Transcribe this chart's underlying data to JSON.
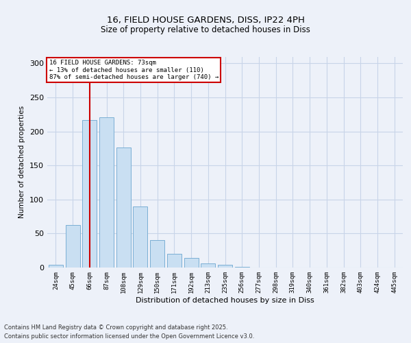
{
  "title_line1": "16, FIELD HOUSE GARDENS, DISS, IP22 4PH",
  "title_line2": "Size of property relative to detached houses in Diss",
  "xlabel": "Distribution of detached houses by size in Diss",
  "ylabel": "Number of detached properties",
  "categories": [
    "24sqm",
    "45sqm",
    "66sqm",
    "87sqm",
    "108sqm",
    "129sqm",
    "150sqm",
    "171sqm",
    "192sqm",
    "213sqm",
    "235sqm",
    "256sqm",
    "277sqm",
    "298sqm",
    "319sqm",
    "340sqm",
    "361sqm",
    "382sqm",
    "403sqm",
    "424sqm",
    "445sqm"
  ],
  "bar_values": [
    4,
    63,
    217,
    221,
    176,
    90,
    40,
    20,
    14,
    6,
    4,
    1,
    0,
    0,
    0,
    0,
    0,
    0,
    0,
    0,
    0
  ],
  "bar_color": "#c9dff2",
  "bar_edge_color": "#7bafd4",
  "grid_color": "#c8d4e8",
  "background_color": "#edf1f9",
  "vline_color": "#cc0000",
  "annotation_line1": "16 FIELD HOUSE GARDENS: 73sqm",
  "annotation_line2": "← 13% of detached houses are smaller (110)",
  "annotation_line3": "87% of semi-detached houses are larger (740) →",
  "annotation_box_color": "#ffffff",
  "annotation_box_edge": "#cc0000",
  "footer_line1": "Contains HM Land Registry data © Crown copyright and database right 2025.",
  "footer_line2": "Contains public sector information licensed under the Open Government Licence v3.0.",
  "ylim": [
    0,
    310
  ],
  "yticks": [
    0,
    50,
    100,
    150,
    200,
    250,
    300
  ]
}
